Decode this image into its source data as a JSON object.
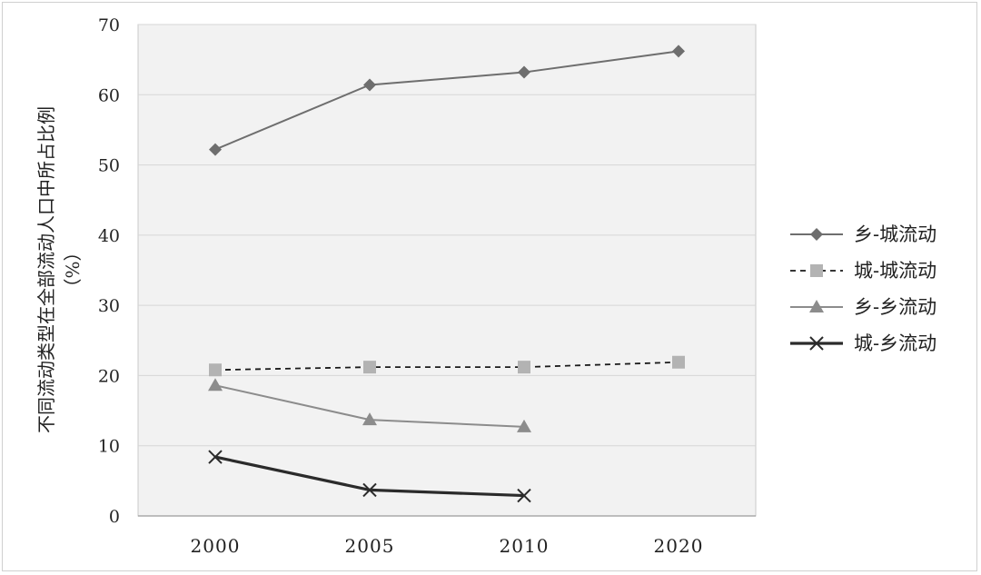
{
  "chart_data": {
    "type": "line",
    "title": "",
    "xlabel": "",
    "ylabel": "不同流动类型在全部流动人口中所占比例",
    "ylabel_unit": "（%）",
    "categories": [
      "2000",
      "2005",
      "2010",
      "2020"
    ],
    "ylim": [
      0,
      70
    ],
    "yticks": [
      0,
      10,
      20,
      30,
      40,
      50,
      60,
      70
    ],
    "grid": true,
    "legend_position": "right",
    "series": [
      {
        "name": "乡-城流动",
        "values": [
          52.2,
          61.4,
          63.2,
          66.2
        ],
        "color": "#6e6e6e",
        "marker": "diamond",
        "dash": "solid"
      },
      {
        "name": "城-城流动",
        "values": [
          20.8,
          21.2,
          21.2,
          21.9
        ],
        "color": "#b3b3b3",
        "line_color": "#1a1a1a",
        "marker": "square",
        "dash": "dashed"
      },
      {
        "name": "乡-乡流动",
        "values": [
          18.6,
          13.7,
          12.7,
          null
        ],
        "color": "#8c8c8c",
        "marker": "triangle",
        "dash": "solid"
      },
      {
        "name": "城-乡流动",
        "values": [
          8.4,
          3.7,
          2.9,
          null
        ],
        "color": "#2b2b2b",
        "marker": "x",
        "dash": "solid"
      }
    ]
  }
}
